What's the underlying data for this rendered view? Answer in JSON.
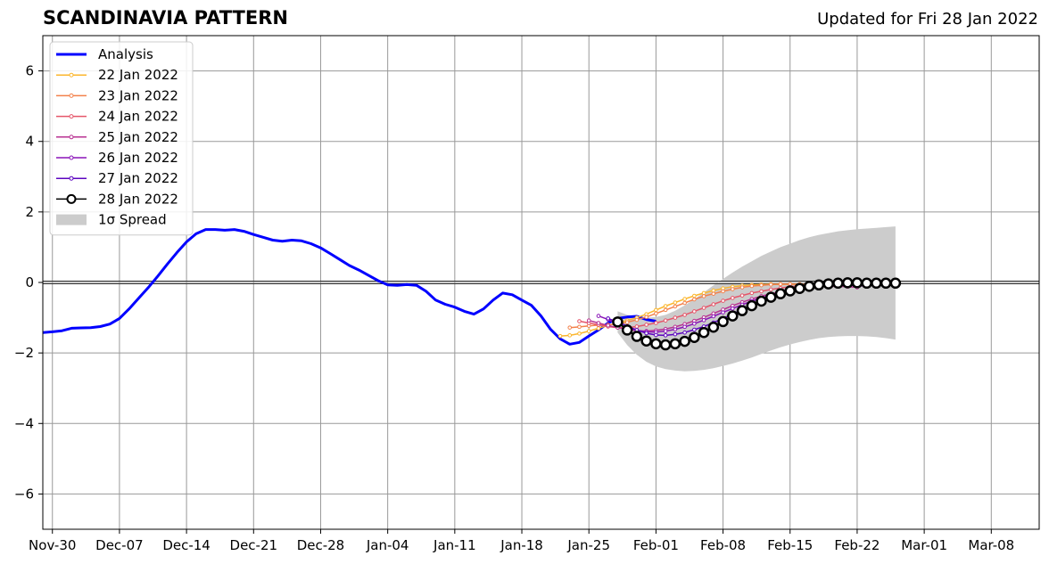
{
  "chart_data": {
    "type": "line",
    "title": "SCANDINAVIA PATTERN",
    "subtitle": "Updated for Fri 28 Jan 2022",
    "xlabel": "",
    "ylabel": "",
    "xlim": [
      "2021-11-29",
      "2022-03-13"
    ],
    "ylim": [
      -7,
      7
    ],
    "yticks": [
      -6,
      -4,
      -2,
      0,
      2,
      4,
      6
    ],
    "ytick_labels": [
      "−6",
      "−4",
      "−2",
      "0",
      "2",
      "4",
      "6"
    ],
    "xticks": [
      "2021-11-30",
      "2021-12-07",
      "2021-12-14",
      "2021-12-21",
      "2021-12-28",
      "2022-01-04",
      "2022-01-11",
      "2022-01-18",
      "2022-01-25",
      "2022-02-01",
      "2022-02-08",
      "2022-02-15",
      "2022-02-22",
      "2022-03-01",
      "2022-03-08"
    ],
    "xtick_labels": [
      "Nov-30",
      "Dec-07",
      "Dec-14",
      "Dec-21",
      "Dec-28",
      "Jan-04",
      "Jan-11",
      "Jan-18",
      "Jan-25",
      "Feb-01",
      "Feb-08",
      "Feb-15",
      "Feb-22",
      "Mar-01",
      "Mar-08"
    ],
    "grid": true,
    "legend_position": "top-left",
    "series": [
      {
        "name": "Analysis",
        "color": "#0000ff",
        "style": "analysis",
        "start": "2021-11-29",
        "values": [
          -1.42,
          -1.4,
          -1.37,
          -1.3,
          -1.29,
          -1.28,
          -1.25,
          -1.18,
          -1.02,
          -0.75,
          -0.45,
          -0.15,
          0.18,
          0.52,
          0.85,
          1.15,
          1.38,
          1.5,
          1.5,
          1.48,
          1.5,
          1.45,
          1.36,
          1.28,
          1.2,
          1.17,
          1.2,
          1.18,
          1.1,
          0.98,
          0.82,
          0.65,
          0.48,
          0.35,
          0.2,
          0.05,
          -0.07,
          -0.08,
          -0.06,
          -0.08,
          -0.25,
          -0.5,
          -0.62,
          -0.7,
          -0.82,
          -0.9,
          -0.75,
          -0.5,
          -0.3,
          -0.35,
          -0.5,
          -0.65,
          -0.95,
          -1.33,
          -1.6,
          -1.75,
          -1.7,
          -1.52,
          -1.35,
          -1.15,
          -1.02,
          -0.98,
          -0.96,
          -1.05,
          -1.1
        ]
      },
      {
        "name": "22 Jan 2022",
        "color": "#fbb62d",
        "style": "forecast",
        "start": "2022-01-22",
        "values": [
          -1.52,
          -1.5,
          -1.45,
          -1.38,
          -1.3,
          -1.22,
          -1.15,
          -1.08,
          -1.0,
          -0.9,
          -0.78,
          -0.67,
          -0.57,
          -0.47,
          -0.38,
          -0.3,
          -0.23,
          -0.17,
          -0.12,
          -0.09,
          -0.07,
          -0.06,
          -0.05,
          -0.05,
          -0.05,
          -0.05,
          -0.06,
          -0.07,
          -0.08,
          -0.09
        ]
      },
      {
        "name": "23 Jan 2022",
        "color": "#f3814b",
        "style": "forecast",
        "start": "2022-01-23",
        "values": [
          -1.28,
          -1.26,
          -1.23,
          -1.21,
          -1.2,
          -1.18,
          -1.13,
          -1.06,
          -0.98,
          -0.88,
          -0.78,
          -0.68,
          -0.58,
          -0.48,
          -0.39,
          -0.32,
          -0.25,
          -0.19,
          -0.14,
          -0.1,
          -0.08,
          -0.06,
          -0.05,
          -0.05,
          -0.05,
          -0.06,
          -0.07,
          -0.08,
          -0.1
        ]
      },
      {
        "name": "24 Jan 2022",
        "color": "#e5566a",
        "style": "forecast",
        "start": "2022-01-24",
        "values": [
          -1.1,
          -1.15,
          -1.2,
          -1.25,
          -1.28,
          -1.28,
          -1.25,
          -1.2,
          -1.15,
          -1.08,
          -1.0,
          -0.92,
          -0.82,
          -0.72,
          -0.62,
          -0.52,
          -0.44,
          -0.37,
          -0.3,
          -0.25,
          -0.2,
          -0.16,
          -0.12,
          -0.1,
          -0.08,
          -0.07,
          -0.07,
          -0.08,
          -0.1
        ]
      },
      {
        "name": "25 Jan 2022",
        "color": "#b83292",
        "style": "forecast",
        "start": "2022-01-25",
        "values": [
          -1.08,
          -1.15,
          -1.22,
          -1.28,
          -1.33,
          -1.37,
          -1.38,
          -1.36,
          -1.32,
          -1.26,
          -1.18,
          -1.09,
          -0.99,
          -0.88,
          -0.77,
          -0.66,
          -0.56,
          -0.47,
          -0.39,
          -0.32,
          -0.26,
          -0.21,
          -0.17,
          -0.14,
          -0.12,
          -0.11,
          -0.11,
          -0.12,
          -0.14
        ]
      },
      {
        "name": "26 Jan 2022",
        "color": "#8a14b8",
        "style": "forecast",
        "start": "2022-01-26",
        "values": [
          -0.95,
          -1.05,
          -1.18,
          -1.28,
          -1.36,
          -1.4,
          -1.41,
          -1.38,
          -1.33,
          -1.26,
          -1.17,
          -1.07,
          -0.96,
          -0.85,
          -0.74,
          -0.63,
          -0.53,
          -0.44,
          -0.36,
          -0.29,
          -0.23,
          -0.18,
          -0.14,
          -0.11,
          -0.09,
          -0.08,
          -0.08,
          -0.09,
          -0.1
        ]
      },
      {
        "name": "27 Jan 2022",
        "color": "#5c05c0",
        "style": "forecast",
        "start": "2022-01-27",
        "values": [
          -1.02,
          -1.12,
          -1.24,
          -1.35,
          -1.44,
          -1.49,
          -1.5,
          -1.47,
          -1.42,
          -1.34,
          -1.25,
          -1.14,
          -1.02,
          -0.89,
          -0.77,
          -0.65,
          -0.54,
          -0.44,
          -0.35,
          -0.27,
          -0.2,
          -0.15,
          -0.11,
          -0.08,
          -0.06,
          -0.05,
          -0.05,
          -0.06,
          -0.07
        ]
      },
      {
        "name": "28 Jan 2022",
        "color": "#000000",
        "style": "latest",
        "start": "2022-01-28",
        "values": [
          -1.12,
          -1.35,
          -1.53,
          -1.66,
          -1.74,
          -1.77,
          -1.74,
          -1.67,
          -1.56,
          -1.42,
          -1.27,
          -1.11,
          -0.95,
          -0.8,
          -0.66,
          -0.53,
          -0.42,
          -0.32,
          -0.24,
          -0.17,
          -0.11,
          -0.07,
          -0.04,
          -0.02,
          -0.01,
          -0.01,
          -0.02,
          -0.02,
          -0.02,
          -0.02
        ]
      }
    ],
    "spread": {
      "name": "1σ Spread",
      "color": "#cccccc",
      "start": "2022-01-28",
      "upper": [
        -0.82,
        -0.92,
        -0.98,
        -1.0,
        -0.98,
        -0.92,
        -0.8,
        -0.65,
        -0.48,
        -0.28,
        -0.08,
        0.1,
        0.28,
        0.45,
        0.6,
        0.75,
        0.88,
        1.0,
        1.1,
        1.2,
        1.28,
        1.35,
        1.4,
        1.45,
        1.48,
        1.51,
        1.53,
        1.55,
        1.57,
        1.59
      ],
      "lower": [
        -1.42,
        -1.78,
        -2.05,
        -2.25,
        -2.38,
        -2.46,
        -2.5,
        -2.52,
        -2.51,
        -2.48,
        -2.43,
        -2.37,
        -2.3,
        -2.22,
        -2.13,
        -2.03,
        -1.93,
        -1.84,
        -1.76,
        -1.69,
        -1.63,
        -1.58,
        -1.55,
        -1.53,
        -1.52,
        -1.52,
        -1.53,
        -1.55,
        -1.58,
        -1.62
      ]
    }
  }
}
